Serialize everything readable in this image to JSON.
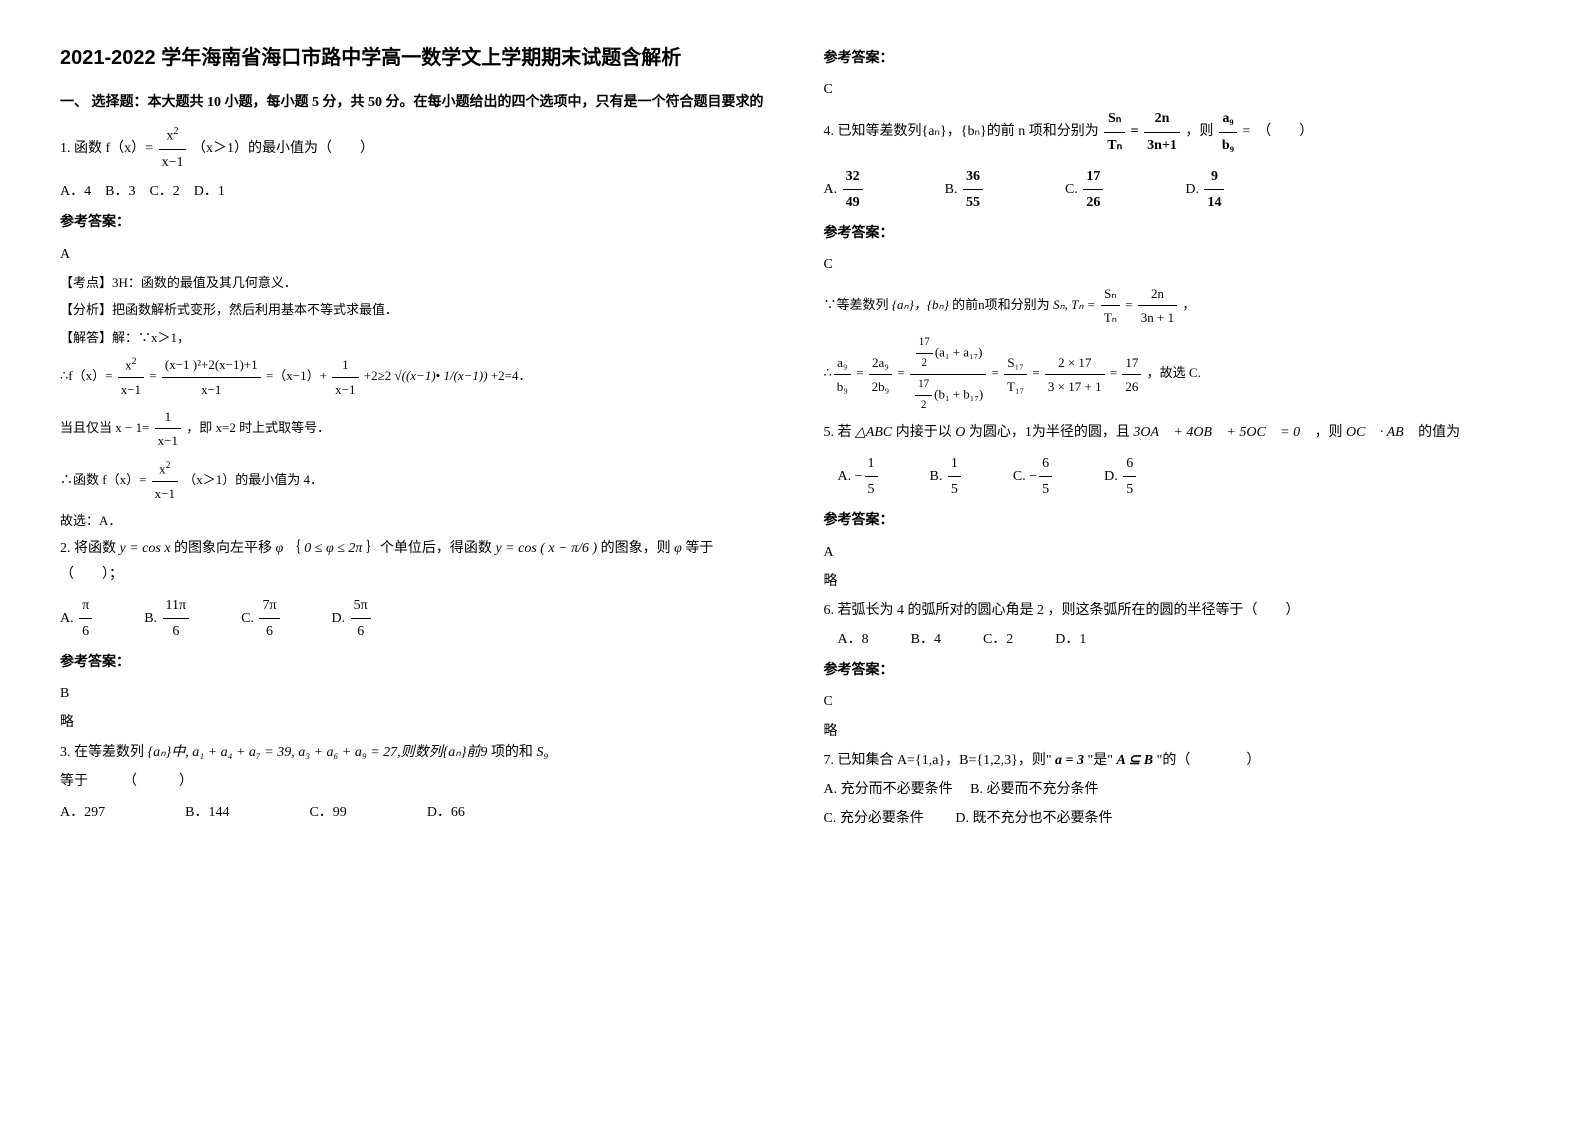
{
  "title": "2021-2022 学年海南省海口市路中学高一数学文上学期期末试题含解析",
  "section1_header": "一、 选择题：本大题共 10 小题，每小题 5 分，共 50 分。在每小题给出的四个选项中，只有是一个符合题目要求的",
  "q1": {
    "stem_prefix": "1. 函数 f（x）=",
    "frac_num": "x",
    "frac_num_sup": "2",
    "frac_den": "x−1",
    "stem_suffix": "（x＞1）的最小值为（　　）",
    "options": "A．4　B．3　C．2　D．1",
    "ans_label": "参考答案：",
    "ans": "A",
    "expl1": "【考点】3H：函数的最值及其几何意义．",
    "expl2": "【分析】把函数解析式变形，然后利用基本不等式求最值．",
    "expl3": "【解答】解：∵x＞1，",
    "expl4_prefix": "∴f（x）=",
    "expl4_mid1": "=",
    "expl4_mid1b_num": "(x−1 )²+2(x−1)+1",
    "expl4_mid1b_den": "x−1",
    "expl4_mid2": "=（x−1）+",
    "expl4_frac2_num": "1",
    "expl4_frac2_den": "x−1",
    "expl4_mid3": "+2≥2",
    "expl4_sqrt": "√((x−1)• 1/(x−1))",
    "expl4_tail": "+2=4．",
    "expl5_prefix": "当且仅当 x − 1=",
    "expl5_frac_num": "1",
    "expl5_frac_den": "x−1",
    "expl5_suffix": "，即 x=2 时上式取等号．",
    "expl6_prefix": "∴函数 f（x）=",
    "expl6_suffix": "（x＞1）的最小值为 4．",
    "expl7": "故选：A．"
  },
  "q2": {
    "stem_a": "2. 将函数",
    "f1": "y = cos x",
    "stem_b": "的图象向左平移",
    "phi": "φ",
    "stem_c": "｛",
    "cond": "0 ≤ φ ≤ 2π",
    "stem_d": "｝个单位后，得函数",
    "f2_a": "y = cos",
    "f2_b": "( x − π/6 )",
    "stem_e": "的图象，则",
    "stem_f": "等于（　　）；",
    "optA": "π",
    "optA_d": "6",
    "optB": "11π",
    "optB_d": "6",
    "optC": "7π",
    "optC_d": "6",
    "optD": "5π",
    "optD_d": "6",
    "ans_label": "参考答案：",
    "ans": "B",
    "expl": "略"
  },
  "q3": {
    "stem_a": "3. 在等差数列",
    "stem_b": "{aₙ}中, a₁ + a₄ + a₇ = 39, a₃ + a₆ + a₉ = 27,则数列{aₙ}前9",
    "stem_c": "项的和",
    "stem_d": "S₉",
    "line2": "等于　　　（　　　）",
    "optA": "A．297",
    "optB": "B．144",
    "optC": "C．99",
    "optD": "D．66",
    "ans_label": "参考答案：",
    "ans": "C"
  },
  "q4": {
    "stem_a": "4. 已知等差数列{aₙ}，{bₙ}的前 n 项和分别为",
    "frac1_n": "Sₙ",
    "frac1_d": "Tₙ",
    "eq": "=",
    "frac2_n": "2n",
    "frac2_d": "3n+1",
    "stem_b": "，则",
    "frac3_n": "a₉",
    "frac3_d": "b₉",
    "stem_c": "=　（　　）",
    "optA_n": "32",
    "optA_d": "49",
    "optB_n": "36",
    "optB_d": "55",
    "optC_n": "17",
    "optC_d": "26",
    "optD_n": "9",
    "optD_d": "14",
    "ans_label": "参考答案：",
    "ans": "C",
    "expl1_a": "∵等差数列",
    "expl1_b": "{aₙ}，{bₙ}",
    "expl1_c": "的前n项和分别为",
    "expl1_d": "Sₙ, Tₙ =",
    "expl1_frac1_n": "Sₙ",
    "expl1_frac1_d": "Tₙ",
    "expl1_eq": "=",
    "expl1_frac2_n": "2n",
    "expl1_frac2_d": "3n + 1",
    "expl1_tail": "，",
    "expl2_lhs_n": "a₉",
    "expl2_lhs_d": "b₉",
    "expl2_eq1": "=",
    "expl2_m1_n": "2a₉",
    "expl2_m1_d": "2b₉",
    "expl2_eq2": "=",
    "expl2_m2_nn": "17",
    "expl2_m2_nd": "2",
    "expl2_m2_na": "(a₁ + a₁₇)",
    "expl2_m2_dn": "17",
    "expl2_m2_dd": "2",
    "expl2_m2_da": "(b₁ + b₁₇)",
    "expl2_eq3": "=",
    "expl2_m3_n": "S₁₇",
    "expl2_m3_d": "T₁₇",
    "expl2_eq4": "=",
    "expl2_m4_n": "2 × 17",
    "expl2_m4_d": "3 × 17 + 1",
    "expl2_eq5": "=",
    "expl2_m5_n": "17",
    "expl2_m5_d": "26",
    "expl2_tail": "，故选 C."
  },
  "q5": {
    "stem_a": "5. 若",
    "tri": "△ABC",
    "stem_b": "内接于以",
    "O": "O",
    "stem_c": "为圆心，1为半径的圆，且",
    "vec": "3OA⃗ + 4OB⃗ + 5OC⃗ = 0⃗",
    "stem_d": "，则",
    "prod": "OC⃗ · AB⃗",
    "stem_e": "的值为",
    "optA": "−",
    "optA_n": "1",
    "optA_d": "5",
    "optB_n": "1",
    "optB_d": "5",
    "optC": "−",
    "optC_n": "6",
    "optC_d": "5",
    "optD_n": "6",
    "optD_d": "5",
    "ans_label": "参考答案：",
    "ans": "A",
    "expl": "略"
  },
  "q6": {
    "stem": "6. 若弧长为 4 的弧所对的圆心角是 2 ，则这条弧所在的圆的半径等于（　　）",
    "opts": "A．8　　　B．4　　　C．2　　　D．1",
    "ans_label": "参考答案：",
    "ans": "C",
    "expl": "略"
  },
  "q7": {
    "stem_a": "7. 已知集合 A={1,a}，B={1,2,3}，则\"",
    "cond1": "a = 3",
    "stem_b": "\"是\"",
    "cond2": "A ⊆ B",
    "stem_c": "\"的（　　　　）",
    "optA": "A. 充分而不必要条件",
    "optB": "B. 必要而不充分条件",
    "optC": "C. 充分必要条件",
    "optD": "D. 既不充分也不必要条件"
  },
  "labels": {
    "A": "A.",
    "B": "B.",
    "C": "C.",
    "D": "D."
  }
}
